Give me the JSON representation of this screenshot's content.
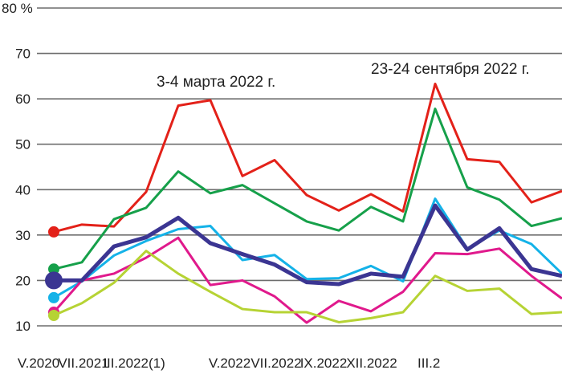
{
  "chart_data": {
    "type": "line",
    "ylabel_unit": "%",
    "ylim": [
      10,
      80
    ],
    "yticks": [
      10,
      20,
      30,
      40,
      50,
      60,
      70,
      80
    ],
    "ytick_labels": [
      "10",
      "20",
      "30",
      "40",
      "50",
      "60",
      "70",
      "80 %"
    ],
    "grid": true,
    "x_tick_labels": [
      "V.2020",
      "VII.2021",
      "III.2022(1)",
      "V.2022",
      "VII.2022",
      "IX.2022",
      "XII.2022",
      "III.2"
    ],
    "annotations": [
      "3-4 марта 2022 г.",
      "23-24 сентября 2022 г."
    ],
    "series": [
      {
        "color": "#e32119",
        "values": [
          30.7,
          32.3,
          31.9,
          39.5,
          58.5,
          59.7,
          43,
          46.5,
          38.8,
          35.4,
          39,
          35.2,
          63.3,
          46.7,
          46.1,
          37.2,
          39.7
        ]
      },
      {
        "color": "#16a04a",
        "values": [
          22.5,
          24,
          33.5,
          36,
          44,
          39.2,
          41,
          37,
          33,
          31,
          36.2,
          33,
          57.8,
          40.5,
          37.8,
          32,
          33.7
        ]
      },
      {
        "color": "#14b2e8",
        "values": [
          16.2,
          19.8,
          25.5,
          28.7,
          31.3,
          32,
          24.5,
          25.6,
          20.3,
          20.5,
          23.2,
          19.8,
          38,
          27,
          31,
          28,
          21.5
        ]
      },
      {
        "color": "#e0198c",
        "values": [
          13,
          20,
          21.5,
          25,
          29.4,
          19,
          20,
          16.5,
          10.7,
          15.5,
          13.2,
          17.5,
          26,
          25.8,
          27,
          21,
          16
        ]
      },
      {
        "color": "#b6d334",
        "values": [
          12.3,
          15,
          19.5,
          26.5,
          21.5,
          17.5,
          13.7,
          13,
          13,
          10.8,
          11.7,
          13,
          21,
          17.7,
          18.2,
          12.6,
          13
        ]
      },
      {
        "color": "#3b3592",
        "values": [
          20,
          20,
          27.5,
          29.5,
          33.8,
          28.2,
          25.8,
          23.5,
          19.6,
          19.2,
          21.5,
          20.8,
          36.5,
          26.8,
          31.5,
          22.5,
          21
        ],
        "emphasis": true
      }
    ]
  }
}
